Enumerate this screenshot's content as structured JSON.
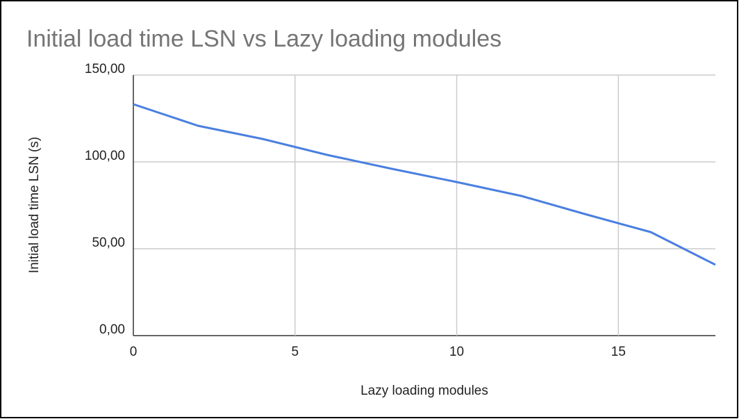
{
  "chart_data": {
    "type": "line",
    "title": "Initial load time LSN vs Lazy loading modules",
    "x_label": "Lazy loading modules",
    "y_label": "Initial load time LSN (s)",
    "x": [
      0,
      2,
      4,
      6,
      8,
      10,
      12,
      14,
      16,
      18
    ],
    "series": [
      {
        "name": "Initial load time LSN (s)",
        "color": "#4a7fe0",
        "values": [
          133.2,
          120.8,
          113.2,
          104,
          96,
          88.4,
          80.4,
          69.8,
          59.6,
          40.8
        ]
      }
    ],
    "xlim": [
      0,
      18
    ],
    "xticks": [
      0,
      5,
      10,
      15
    ],
    "ylim": [
      0,
      150
    ],
    "yticks": [
      {
        "value": 0,
        "label": "0,00"
      },
      {
        "value": 50,
        "label": "50,00"
      },
      {
        "value": 100,
        "label": "100,00"
      },
      {
        "value": 150,
        "label": "150,00"
      }
    ],
    "grid": true
  }
}
